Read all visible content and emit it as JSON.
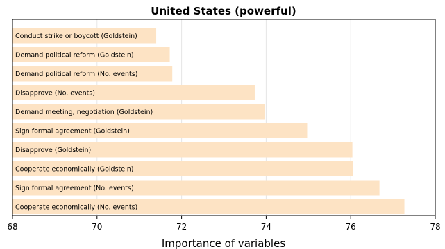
{
  "chart_data": {
    "type": "bar",
    "orientation": "horizontal",
    "title": "United States (powerful)",
    "xlabel": "Importance of variables",
    "ylabel": "",
    "xlim": [
      68,
      78
    ],
    "xticks": [
      68,
      70,
      72,
      74,
      76,
      78
    ],
    "grid": true,
    "bar_color": "#fde3c4",
    "categories": [
      "Conduct strike or boycott (Goldstein)",
      "Demand political reform (Goldstein)",
      "Demand political reform (No. events)",
      "Disapprove (No. events)",
      "Demand meeting, negotiation (Goldstein)",
      "Sign formal agreement (Goldstein)",
      "Disapprove (Goldstein)",
      "Cooperate economically (Goldstein)",
      "Sign formal agreement (No. events)",
      "Cooperate economically (No. events)"
    ],
    "values": [
      71.4,
      71.72,
      71.78,
      73.73,
      73.97,
      74.97,
      76.04,
      76.06,
      76.68,
      77.27
    ]
  }
}
